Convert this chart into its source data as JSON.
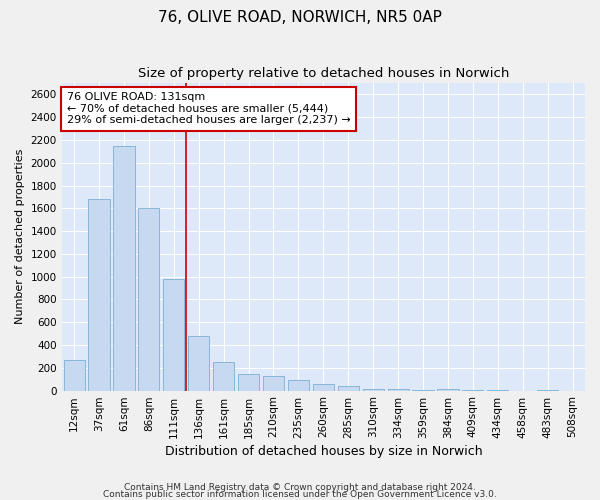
{
  "title": "76, OLIVE ROAD, NORWICH, NR5 0AP",
  "subtitle": "Size of property relative to detached houses in Norwich",
  "xlabel": "Distribution of detached houses by size in Norwich",
  "ylabel": "Number of detached properties",
  "categories": [
    "12sqm",
    "37sqm",
    "61sqm",
    "86sqm",
    "111sqm",
    "136sqm",
    "161sqm",
    "185sqm",
    "210sqm",
    "235sqm",
    "260sqm",
    "285sqm",
    "310sqm",
    "334sqm",
    "359sqm",
    "384sqm",
    "409sqm",
    "434sqm",
    "458sqm",
    "483sqm",
    "508sqm"
  ],
  "values": [
    270,
    1680,
    2150,
    1600,
    980,
    480,
    250,
    145,
    125,
    90,
    55,
    40,
    15,
    10,
    5,
    15,
    5,
    5,
    0,
    5,
    0
  ],
  "bar_color": "#c6d9f0",
  "bar_edge_color": "#7bafd4",
  "background_color": "#dde8f8",
  "grid_color": "#ffffff",
  "red_line_x": 4.5,
  "annotation_text": "76 OLIVE ROAD: 131sqm\n← 70% of detached houses are smaller (5,444)\n29% of semi-detached houses are larger (2,237) →",
  "annotation_box_color": "#ffffff",
  "annotation_box_edge_color": "#cc0000",
  "ylim": [
    0,
    2700
  ],
  "yticks": [
    0,
    200,
    400,
    600,
    800,
    1000,
    1200,
    1400,
    1600,
    1800,
    2000,
    2200,
    2400,
    2600
  ],
  "footnote1": "Contains HM Land Registry data © Crown copyright and database right 2024.",
  "footnote2": "Contains public sector information licensed under the Open Government Licence v3.0.",
  "title_fontsize": 11,
  "subtitle_fontsize": 9.5,
  "xlabel_fontsize": 9,
  "ylabel_fontsize": 8,
  "tick_fontsize": 7.5,
  "annot_fontsize": 8,
  "footnote_fontsize": 6.5
}
